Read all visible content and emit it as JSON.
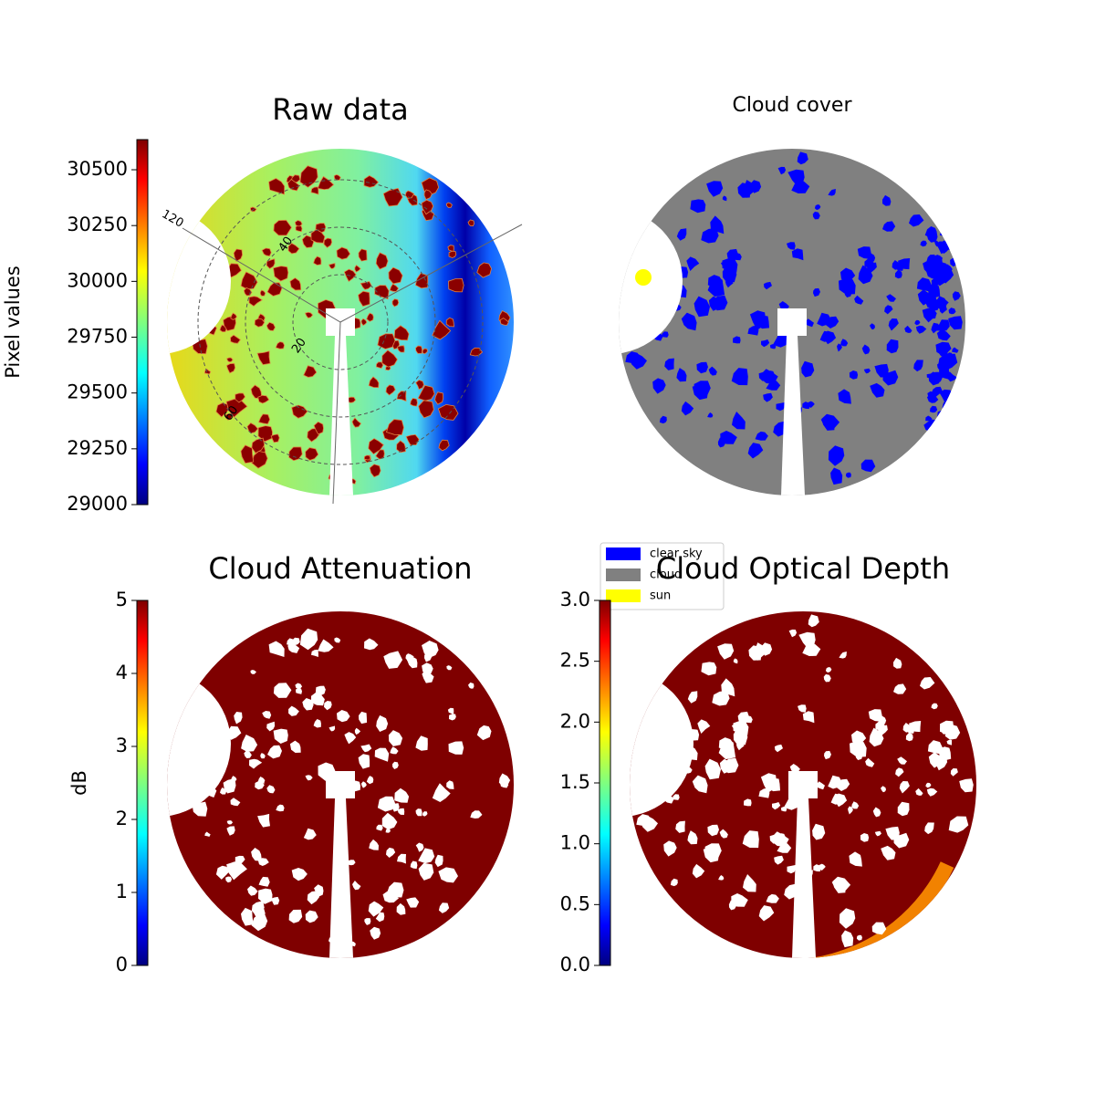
{
  "chart_data": [
    {
      "type": "image",
      "title": "Raw data",
      "colorbar": {
        "label": "Pixel values",
        "lim": [
          29000,
          30635
        ],
        "ticks": [
          29000,
          29250,
          29500,
          29750,
          30000,
          30250,
          30500
        ]
      },
      "polar_grid": {
        "rings": [
          20,
          40,
          60
        ],
        "azimuth_labels": [
          120
        ]
      }
    },
    {
      "type": "image",
      "title": "Cloud cover",
      "legend": [
        {
          "name": "clear sky",
          "color": "#0000ff"
        },
        {
          "name": "cloud",
          "color": "#808080"
        },
        {
          "name": "sun",
          "color": "#ffff00"
        }
      ]
    },
    {
      "type": "image",
      "title": "Cloud Attenuation",
      "colorbar": {
        "label": "dB",
        "lim": [
          0,
          5
        ],
        "ticks": [
          0,
          1,
          2,
          3,
          4,
          5
        ]
      }
    },
    {
      "type": "image",
      "title": "Cloud Optical Depth",
      "colorbar": {
        "lim": [
          0,
          3
        ],
        "ticks": [
          {
            "value": 0,
            "label": "0.0"
          },
          0.5,
          {
            "value": 1,
            "label": "1.0"
          },
          1.5,
          {
            "value": 2,
            "label": "2.0"
          },
          2.5,
          {
            "value": 3,
            "label": "3.0"
          }
        ]
      }
    }
  ]
}
